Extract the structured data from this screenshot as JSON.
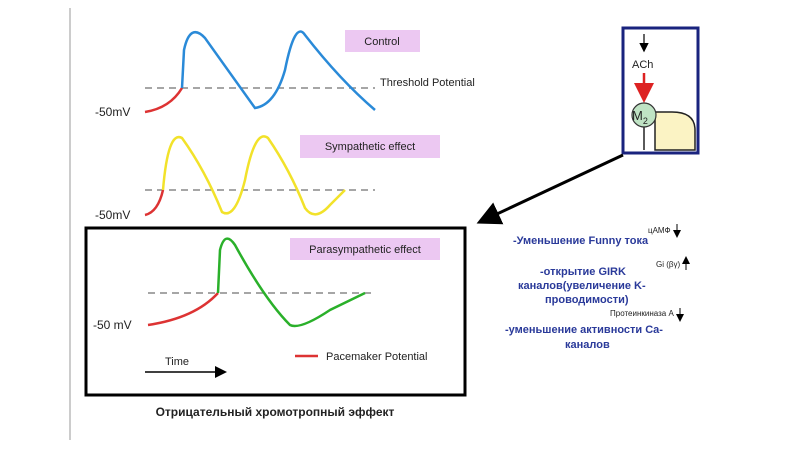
{
  "panels": [
    {
      "label": "Control",
      "threshold_label": "Threshold Potential",
      "baseline_label": "-50mV"
    },
    {
      "label": "Sympathetic effect",
      "baseline_label": "-50mV"
    },
    {
      "label": "Parasympathetic effect",
      "baseline_label": "-50 mV",
      "time_label": "Time",
      "legend_label": "Pacemaker Potential"
    }
  ],
  "caption": "Отрицательный хромотропный эффект",
  "receptor": {
    "ligand": "ACh",
    "name": "M",
    "subscript": "2"
  },
  "effects": [
    {
      "marker": "цАМФ",
      "lines": [
        "-Уменьшение Funny тока"
      ]
    },
    {
      "marker": "Gi (βγ)",
      "lines": [
        "-открытие GIRK",
        "каналов(увеличение K-",
        "проводимости)"
      ]
    },
    {
      "marker": "Протеинкиназа А",
      "lines": [
        "-уменьшение активности Ca-",
        "каналов"
      ]
    }
  ]
}
